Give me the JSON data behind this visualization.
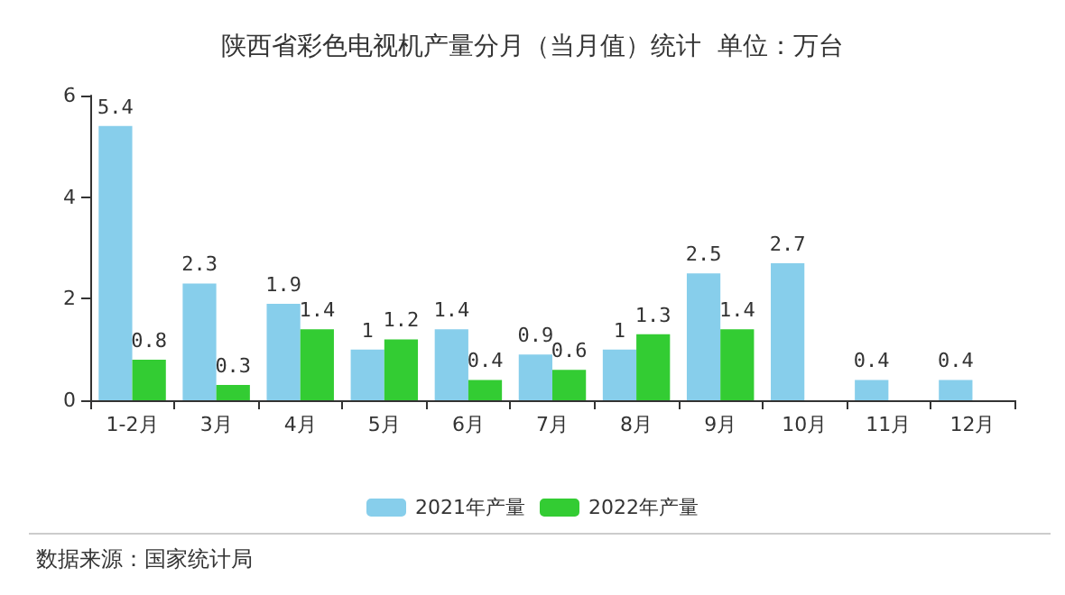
{
  "chart_data": {
    "type": "bar",
    "title": "陕西省彩色电视机产量分月（当月值）统计  单位：万台",
    "categories": [
      "1-2月",
      "3月",
      "4月",
      "5月",
      "6月",
      "7月",
      "8月",
      "9月",
      "10月",
      "11月",
      "12月"
    ],
    "series": [
      {
        "name": "2021年产量",
        "color": "#87ceeb",
        "values": [
          5.4,
          2.3,
          1.9,
          1,
          1.4,
          0.9,
          1,
          2.5,
          2.7,
          0.4,
          0.4
        ]
      },
      {
        "name": "2022年产量",
        "color": "#33cc33",
        "values": [
          0.8,
          0.3,
          1.4,
          1.2,
          0.4,
          0.6,
          1.3,
          1.4,
          null,
          null,
          null
        ]
      }
    ],
    "ylim": [
      0,
      6
    ],
    "yticks": [
      0,
      2,
      4,
      6
    ],
    "grid": false,
    "legend": "bottom",
    "data_labels": true,
    "annotations": [
      "数据来源：国家统计局"
    ]
  }
}
